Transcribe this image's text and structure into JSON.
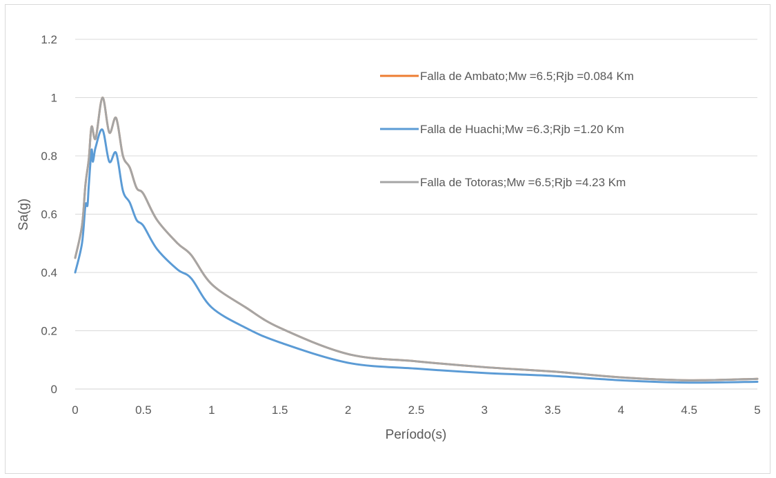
{
  "chart_data": {
    "type": "line",
    "title": "",
    "xlabel": "Período(s)",
    "ylabel": "Sa(g)",
    "xlim": [
      0,
      5
    ],
    "ylim": [
      0,
      1.2
    ],
    "x_ticks": [
      "0",
      "0.5",
      "1",
      "1.5",
      "2",
      "2.5",
      "3",
      "3.5",
      "4",
      "4.5",
      "5"
    ],
    "y_ticks": [
      "0",
      "0.2",
      "0.4",
      "0.6",
      "0.8",
      "1",
      "1.2"
    ],
    "grid": "horizontal",
    "legend_position": "top-right (inside plot)",
    "series": [
      {
        "name": "Falla de Ambato;Mw =6.5;Rjb =0.084 Km",
        "color": "#ED7D31",
        "x": [
          0,
          0.05,
          0.075,
          0.1,
          0.12,
          0.15,
          0.2,
          0.25,
          0.3,
          0.35,
          0.4,
          0.45,
          0.5,
          0.6,
          0.75,
          0.85,
          1.0,
          1.25,
          1.5,
          2.0,
          2.5,
          3.0,
          3.5,
          4.0,
          4.5,
          5.0
        ],
        "y": [
          0.45,
          0.56,
          0.7,
          0.79,
          0.9,
          0.86,
          1.0,
          0.88,
          0.93,
          0.8,
          0.76,
          0.69,
          0.67,
          0.58,
          0.5,
          0.46,
          0.36,
          0.28,
          0.21,
          0.12,
          0.095,
          0.075,
          0.06,
          0.04,
          0.03,
          0.035
        ]
      },
      {
        "name": "Falla de Huachi;Mw =6.3;Rjb =1.20 Km",
        "color": "#5B9BD5",
        "x": [
          0,
          0.05,
          0.075,
          0.09,
          0.1,
          0.12,
          0.13,
          0.15,
          0.2,
          0.25,
          0.3,
          0.35,
          0.4,
          0.45,
          0.5,
          0.6,
          0.75,
          0.85,
          1.0,
          1.25,
          1.5,
          2.0,
          2.5,
          3.0,
          3.5,
          4.0,
          4.5,
          5.0
        ],
        "y": [
          0.4,
          0.5,
          0.63,
          0.63,
          0.7,
          0.82,
          0.78,
          0.83,
          0.89,
          0.78,
          0.81,
          0.68,
          0.64,
          0.58,
          0.56,
          0.48,
          0.41,
          0.38,
          0.28,
          0.21,
          0.16,
          0.09,
          0.07,
          0.055,
          0.045,
          0.03,
          0.022,
          0.025
        ]
      },
      {
        "name": "Falla de Totoras;Mw =6.5;Rjb =4.23 Km",
        "color": "#A5A5A5",
        "x": [
          0,
          0.05,
          0.075,
          0.1,
          0.12,
          0.15,
          0.2,
          0.25,
          0.3,
          0.35,
          0.4,
          0.45,
          0.5,
          0.6,
          0.75,
          0.85,
          1.0,
          1.25,
          1.5,
          2.0,
          2.5,
          3.0,
          3.5,
          4.0,
          4.5,
          5.0
        ],
        "y": [
          0.45,
          0.56,
          0.7,
          0.79,
          0.9,
          0.86,
          1.0,
          0.88,
          0.93,
          0.8,
          0.76,
          0.69,
          0.67,
          0.58,
          0.5,
          0.46,
          0.36,
          0.28,
          0.21,
          0.12,
          0.095,
          0.075,
          0.06,
          0.04,
          0.03,
          0.035
        ]
      }
    ]
  }
}
